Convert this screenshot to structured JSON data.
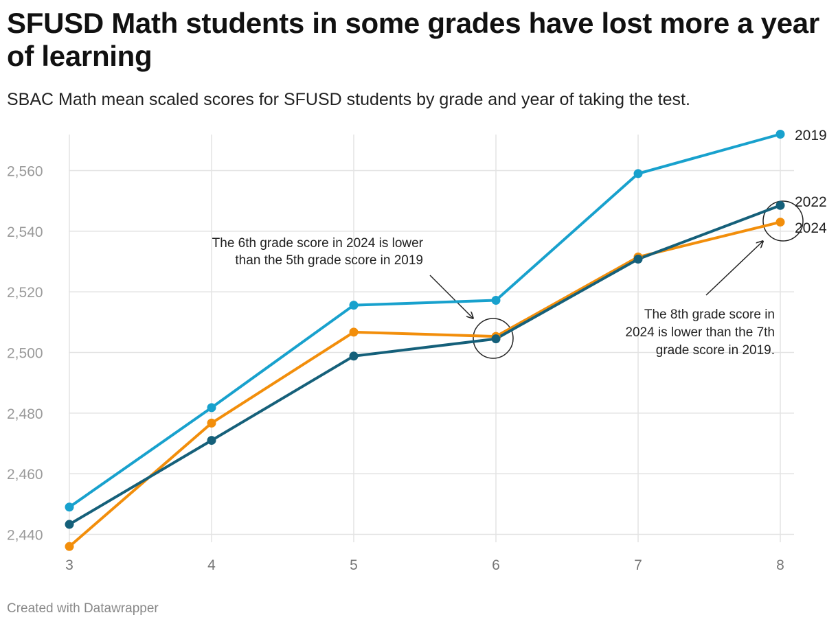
{
  "header": {
    "title": "SFUSD Math students in some grades have lost more a year of learning",
    "subtitle": "SBAC Math mean scaled scores for SFUSD students by grade and year of taking the test."
  },
  "footer": {
    "credit": "Created with Datawrapper"
  },
  "chart_data": {
    "type": "line",
    "title": "SFUSD Math students in some grades have lost more a year of learning",
    "xlabel": "",
    "ylabel": "",
    "x": [
      3,
      4,
      5,
      6,
      7,
      8
    ],
    "xlim": [
      3,
      8
    ],
    "ylim": [
      2432,
      2575
    ],
    "y_ticks": [
      2440,
      2460,
      2480,
      2500,
      2520,
      2540,
      2560
    ],
    "y_tick_labels": [
      "2,440",
      "2,460",
      "2,480",
      "2,500",
      "2,520",
      "2,540",
      "2,560"
    ],
    "x_tick_labels": [
      "3",
      "4",
      "5",
      "6",
      "7",
      "8"
    ],
    "grid": true,
    "series": [
      {
        "name": "2019",
        "color": "#18a1cd",
        "values": [
          2449,
          2481.8,
          2515.6,
          2517.2,
          2559,
          2572
        ]
      },
      {
        "name": "2024",
        "color": "#f28e0b",
        "values": [
          2436,
          2476.7,
          2506.7,
          2505.3,
          2531.5,
          2543
        ]
      },
      {
        "name": "2022",
        "color": "#15607a",
        "values": [
          2443.3,
          2471,
          2498.8,
          2504.5,
          2530.8,
          2548.5
        ]
      }
    ],
    "annotations": [
      {
        "lines": [
          "The 6th grade score in 2024 is lower",
          "than the 5th grade score in 2019"
        ],
        "target": {
          "x": 6,
          "y": 2505
        }
      },
      {
        "lines": [
          "The 8th grade score in",
          "2024 is lower than the 7th",
          "grade score in 2019."
        ],
        "target": {
          "x": 8,
          "y": 2544
        }
      }
    ]
  }
}
